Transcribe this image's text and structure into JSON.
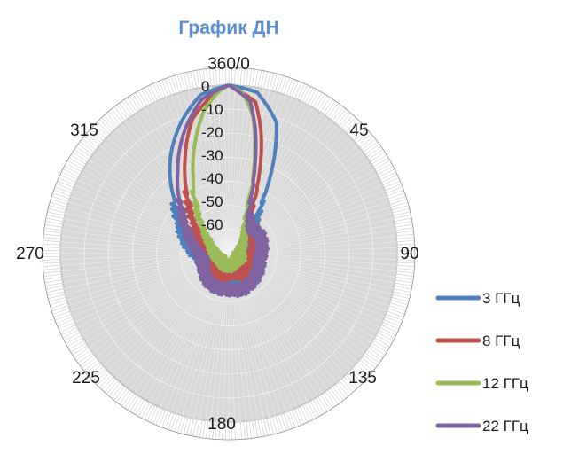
{
  "chart_data": {
    "type": "line",
    "subtype": "polar-radar",
    "title": "График ДН",
    "title_color": "#5b8fd0",
    "angle_labels": [
      "360/0",
      "45",
      "90",
      "135",
      "180",
      "225",
      "270",
      "315"
    ],
    "radial_ticks": [
      "0",
      "-10",
      "-20",
      "-30",
      "-40",
      "-50",
      "-60"
    ],
    "radial_range": [
      -70,
      0
    ],
    "grid": true,
    "legend_position": "right",
    "series": [
      {
        "name": "3 ГГц",
        "color": "#4f81bd",
        "points": [
          [
            0,
            0
          ],
          [
            10,
            -2
          ],
          [
            20,
            -12
          ],
          [
            25,
            -25
          ],
          [
            30,
            -38
          ],
          [
            35,
            -48
          ],
          [
            45,
            -55
          ],
          [
            60,
            -58
          ],
          [
            80,
            -60
          ],
          [
            100,
            -61
          ],
          [
            120,
            -60
          ],
          [
            140,
            -59
          ],
          [
            160,
            -58
          ],
          [
            180,
            -58
          ],
          [
            200,
            -58
          ],
          [
            220,
            -59
          ],
          [
            240,
            -60
          ],
          [
            260,
            -58
          ],
          [
            280,
            -53
          ],
          [
            300,
            -47
          ],
          [
            315,
            -38
          ],
          [
            330,
            -22
          ],
          [
            340,
            -12
          ],
          [
            350,
            -3
          ],
          [
            360,
            0
          ]
        ]
      },
      {
        "name": "8 ГГц",
        "color": "#c0504d",
        "points": [
          [
            0,
            0
          ],
          [
            10,
            -6
          ],
          [
            15,
            -18
          ],
          [
            20,
            -32
          ],
          [
            25,
            -45
          ],
          [
            30,
            -53
          ],
          [
            45,
            -57
          ],
          [
            70,
            -58
          ],
          [
            90,
            -60
          ],
          [
            110,
            -60
          ],
          [
            130,
            -61
          ],
          [
            150,
            -60
          ],
          [
            170,
            -62
          ],
          [
            190,
            -61
          ],
          [
            210,
            -60
          ],
          [
            230,
            -61
          ],
          [
            250,
            -60
          ],
          [
            270,
            -60
          ],
          [
            290,
            -58
          ],
          [
            310,
            -52
          ],
          [
            325,
            -40
          ],
          [
            335,
            -27
          ],
          [
            345,
            -12
          ],
          [
            355,
            -3
          ],
          [
            360,
            0
          ]
        ]
      },
      {
        "name": "12 ГГц",
        "color": "#9bbb59",
        "points": [
          [
            0,
            0
          ],
          [
            5,
            -3
          ],
          [
            10,
            -12
          ],
          [
            14,
            -25
          ],
          [
            18,
            -38
          ],
          [
            22,
            -50
          ],
          [
            30,
            -57
          ],
          [
            50,
            -63
          ],
          [
            80,
            -66
          ],
          [
            110,
            -65
          ],
          [
            140,
            -66
          ],
          [
            170,
            -65
          ],
          [
            200,
            -65
          ],
          [
            230,
            -66
          ],
          [
            260,
            -65
          ],
          [
            290,
            -63
          ],
          [
            310,
            -58
          ],
          [
            325,
            -47
          ],
          [
            335,
            -35
          ],
          [
            343,
            -22
          ],
          [
            350,
            -10
          ],
          [
            356,
            -3
          ],
          [
            360,
            0
          ]
        ]
      },
      {
        "name": "22 ГГц",
        "color": "#8064a2",
        "points": [
          [
            0,
            0
          ],
          [
            8,
            -6
          ],
          [
            12,
            -17
          ],
          [
            16,
            -30
          ],
          [
            20,
            -42
          ],
          [
            27,
            -52
          ],
          [
            40,
            -56
          ],
          [
            60,
            -55
          ],
          [
            80,
            -56
          ],
          [
            100,
            -57
          ],
          [
            120,
            -56
          ],
          [
            140,
            -55
          ],
          [
            160,
            -54
          ],
          [
            180,
            -55
          ],
          [
            200,
            -55
          ],
          [
            220,
            -56
          ],
          [
            240,
            -58
          ],
          [
            260,
            -59
          ],
          [
            280,
            -56
          ],
          [
            300,
            -50
          ],
          [
            315,
            -42
          ],
          [
            328,
            -30
          ],
          [
            340,
            -16
          ],
          [
            350,
            -5
          ],
          [
            360,
            0
          ]
        ]
      }
    ]
  }
}
